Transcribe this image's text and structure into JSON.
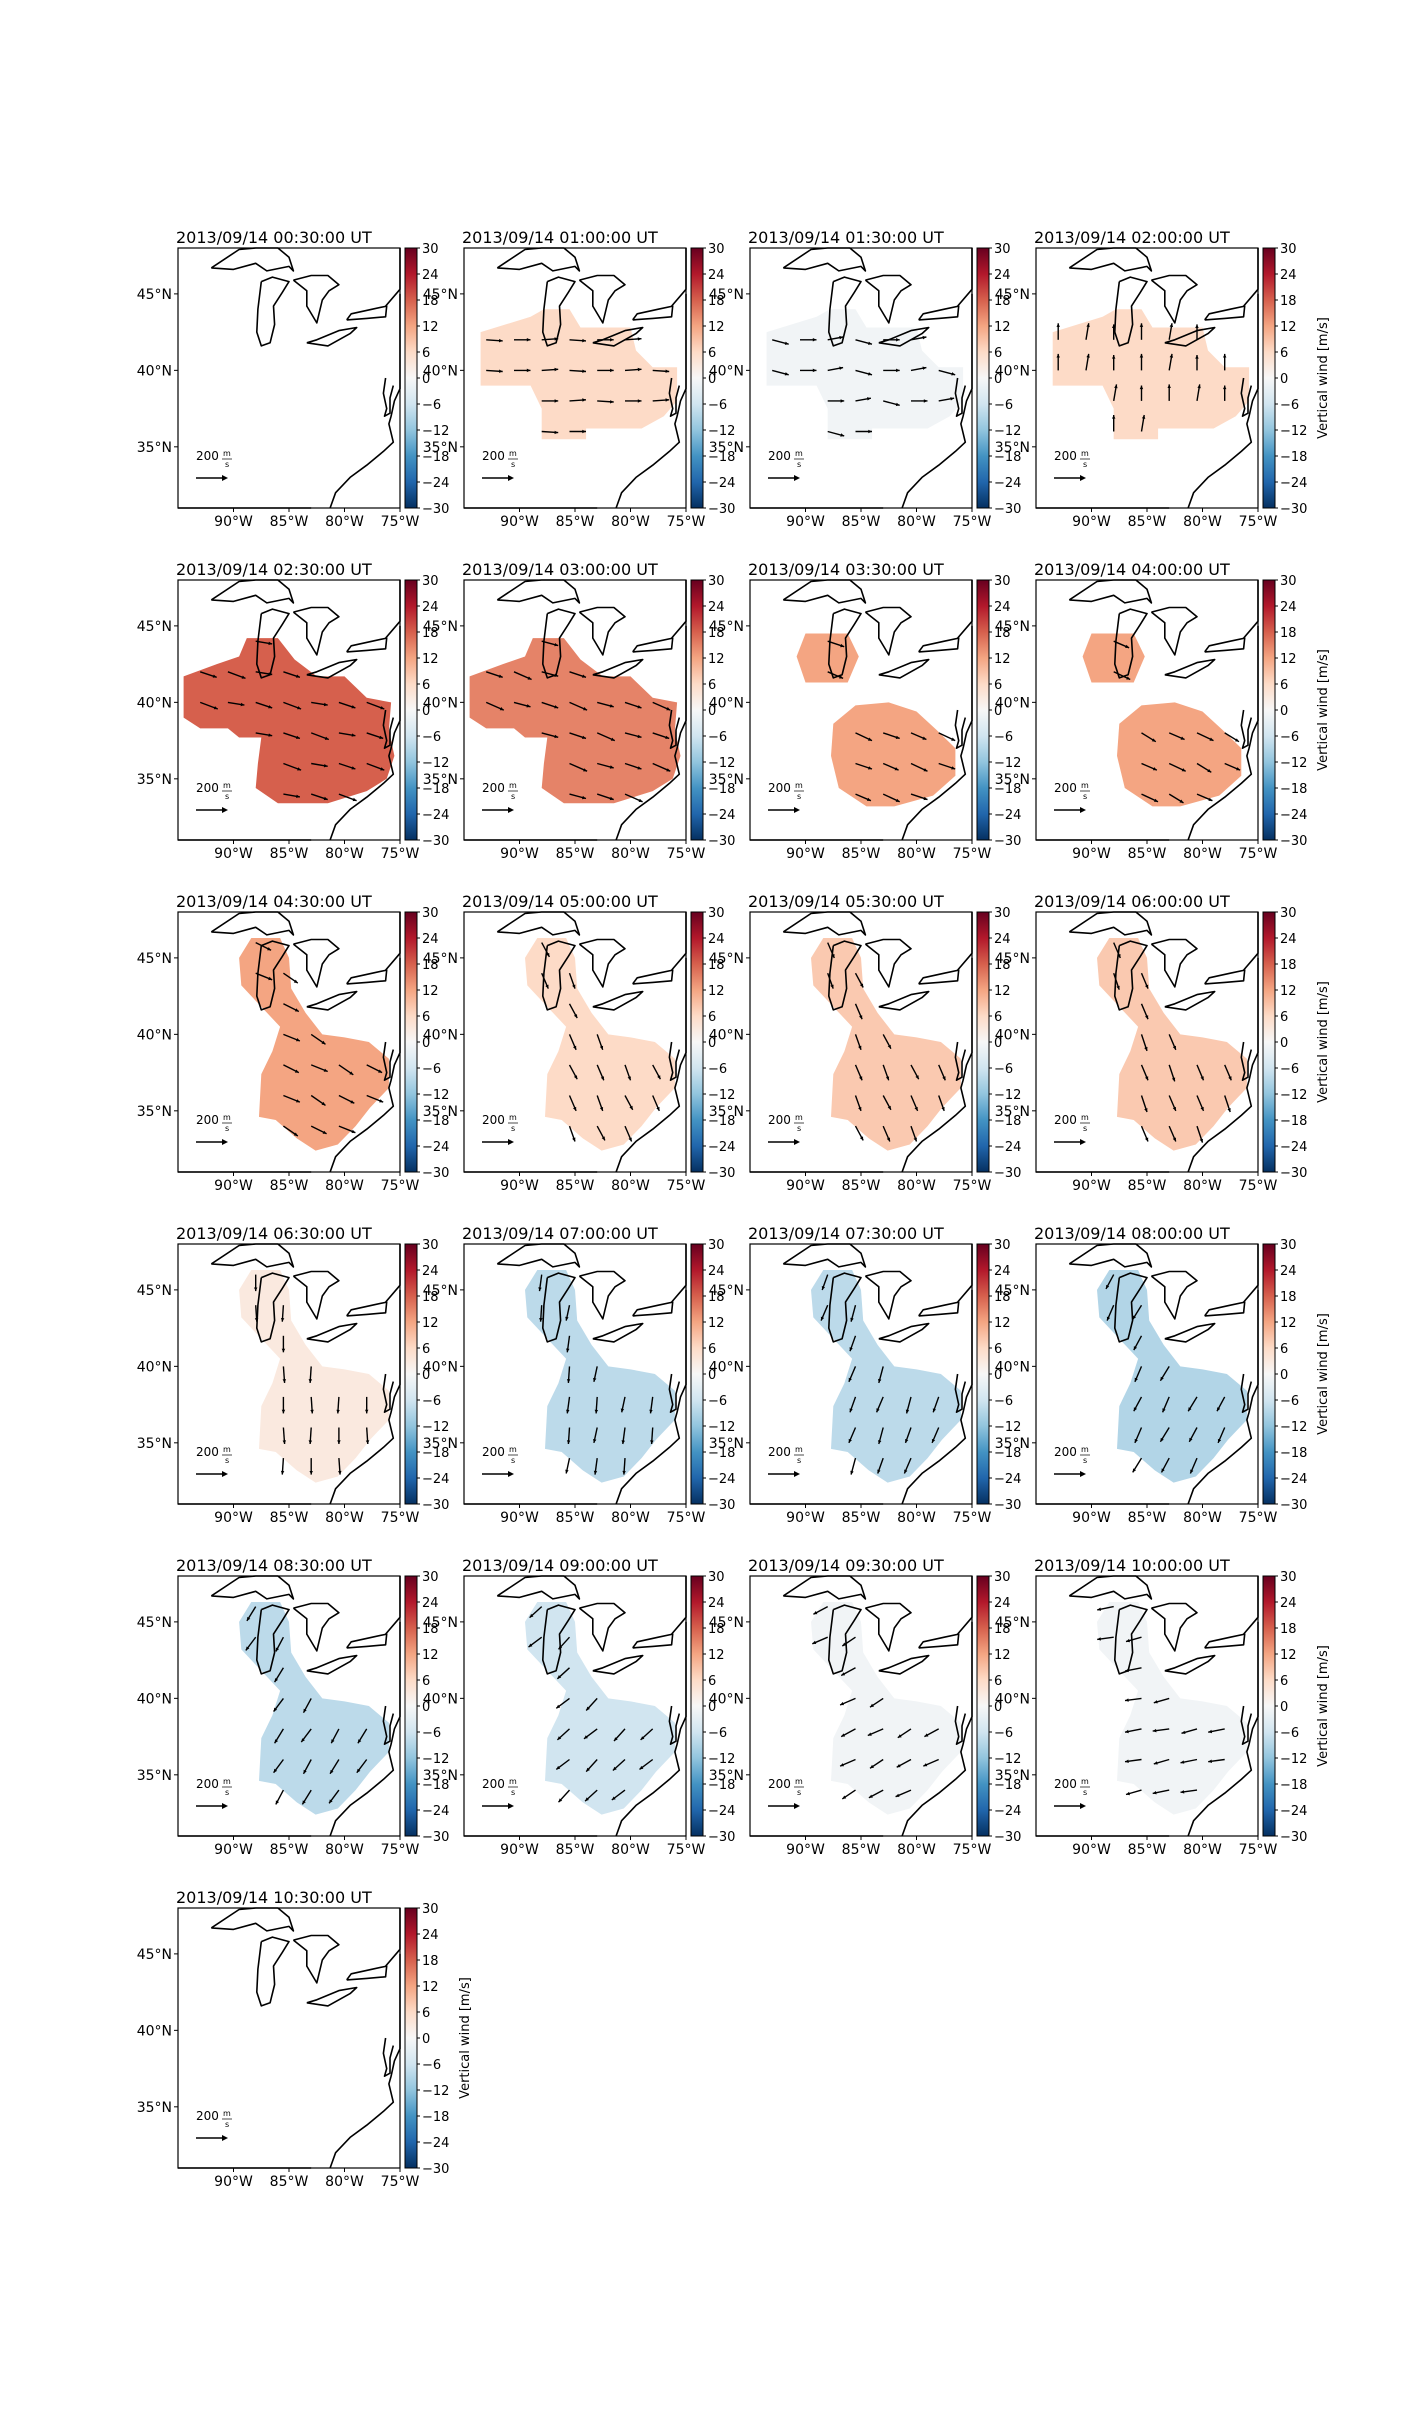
{
  "figure": {
    "colorbar_label": "Vertical wind [m/s]",
    "colorbar_ticks": [
      "30",
      "24",
      "18",
      "12",
      "6",
      "0",
      "−6",
      "−12",
      "−18",
      "−24",
      "−30"
    ],
    "lat_ticks": [
      "45°N",
      "40°N",
      "35°N"
    ],
    "lon_ticks": [
      "90°W",
      "85°W",
      "80°W",
      "75°W"
    ],
    "arrow_key_label": "200",
    "arrow_key_unit_top": "m",
    "arrow_key_unit_bottom": "s",
    "colormap": [
      "#053061",
      "#2166ac",
      "#4393c3",
      "#92c5de",
      "#d1e5f0",
      "#f7f7f7",
      "#fddbc7",
      "#f4a582",
      "#d6604d",
      "#b2182b",
      "#67001f"
    ]
  },
  "chart_data": [
    {
      "type": "heatmap",
      "title": "2013/09/14 00:30:00 UT",
      "value": null,
      "region": "none",
      "arrows": [],
      "colorbar_label_shown": false
    },
    {
      "type": "heatmap",
      "title": "2013/09/14 01:00:00 UT",
      "value": 6,
      "region": "west_lakes",
      "arrows": [
        [
          30,
          -2
        ],
        [
          30,
          0
        ],
        [
          30,
          2
        ]
      ],
      "colorbar_label_shown": false
    },
    {
      "type": "heatmap",
      "title": "2013/09/14 01:30:00 UT",
      "value": -1,
      "region": "west_lakes",
      "arrows": [
        [
          30,
          -8
        ],
        [
          30,
          0
        ],
        [
          28,
          5
        ]
      ],
      "colorbar_label_shown": false
    },
    {
      "type": "heatmap",
      "title": "2013/09/14 02:00:00 UT",
      "value": 6,
      "region": "west_lakes",
      "arrows": [
        [
          0,
          30
        ],
        [
          5,
          30
        ],
        [
          0,
          28
        ]
      ],
      "colorbar_label_shown": true
    },
    {
      "type": "heatmap",
      "title": "2013/09/14 02:30:00 UT",
      "value": 18,
      "region": "west_big",
      "arrows": [
        [
          30,
          -5
        ],
        [
          30,
          -10
        ],
        [
          32,
          -12
        ]
      ],
      "colorbar_label_shown": false
    },
    {
      "type": "heatmap",
      "title": "2013/09/14 03:00:00 UT",
      "value": 15,
      "region": "west_big",
      "arrows": [
        [
          30,
          -8
        ],
        [
          30,
          -10
        ],
        [
          32,
          -14
        ]
      ],
      "colorbar_label_shown": false
    },
    {
      "type": "heatmap",
      "title": "2013/09/14 03:30:00 UT",
      "value": 12,
      "region": "two_blobs",
      "arrows": [
        [
          30,
          -10
        ],
        [
          28,
          -12
        ],
        [
          30,
          -14
        ]
      ],
      "colorbar_label_shown": false
    },
    {
      "type": "heatmap",
      "title": "2013/09/14 04:00:00 UT",
      "value": 12,
      "region": "two_blobs",
      "arrows": [
        [
          28,
          -12
        ],
        [
          30,
          -14
        ],
        [
          26,
          -16
        ]
      ],
      "colorbar_label_shown": true
    },
    {
      "type": "heatmap",
      "title": "2013/09/14 04:30:00 UT",
      "value": 12,
      "region": "chain",
      "arrows": [
        [
          28,
          -14
        ],
        [
          30,
          -12
        ],
        [
          26,
          -18
        ]
      ],
      "colorbar_label_shown": false
    },
    {
      "type": "heatmap",
      "title": "2013/09/14 05:00:00 UT",
      "value": 6,
      "region": "chain",
      "arrows": [
        [
          14,
          -26
        ],
        [
          12,
          -28
        ],
        [
          10,
          -28
        ]
      ],
      "colorbar_label_shown": false
    },
    {
      "type": "heatmap",
      "title": "2013/09/14 05:30:00 UT",
      "value": 8,
      "region": "chain",
      "arrows": [
        [
          12,
          -28
        ],
        [
          10,
          -28
        ],
        [
          14,
          -26
        ]
      ],
      "colorbar_label_shown": false
    },
    {
      "type": "heatmap",
      "title": "2013/09/14 06:00:00 UT",
      "value": 8,
      "region": "chain",
      "arrows": [
        [
          12,
          -28
        ],
        [
          10,
          -30
        ],
        [
          12,
          -28
        ]
      ],
      "colorbar_label_shown": true
    },
    {
      "type": "heatmap",
      "title": "2013/09/14 06:30:00 UT",
      "value": 3,
      "region": "chain",
      "arrows": [
        [
          0,
          -30
        ],
        [
          2,
          -30
        ],
        [
          -2,
          -30
        ]
      ],
      "colorbar_label_shown": false
    },
    {
      "type": "heatmap",
      "title": "2013/09/14 07:00:00 UT",
      "value": -8,
      "region": "chain",
      "arrows": [
        [
          -4,
          -30
        ],
        [
          -2,
          -30
        ],
        [
          -6,
          -28
        ]
      ],
      "colorbar_label_shown": false
    },
    {
      "type": "heatmap",
      "title": "2013/09/14 07:30:00 UT",
      "value": -8,
      "region": "chain",
      "arrows": [
        [
          -10,
          -28
        ],
        [
          -12,
          -28
        ],
        [
          -8,
          -30
        ]
      ],
      "colorbar_label_shown": false
    },
    {
      "type": "heatmap",
      "title": "2013/09/14 08:00:00 UT",
      "value": -9,
      "region": "chain",
      "arrows": [
        [
          -14,
          -26
        ],
        [
          -12,
          -28
        ],
        [
          -16,
          -26
        ]
      ],
      "colorbar_label_shown": true
    },
    {
      "type": "heatmap",
      "title": "2013/09/14 08:30:00 UT",
      "value": -8,
      "region": "chain",
      "arrows": [
        [
          -16,
          -26
        ],
        [
          -18,
          -24
        ],
        [
          -14,
          -26
        ]
      ],
      "colorbar_label_shown": false
    },
    {
      "type": "heatmap",
      "title": "2013/09/14 09:00:00 UT",
      "value": -6,
      "region": "chain",
      "arrows": [
        [
          -22,
          -20
        ],
        [
          -24,
          -18
        ],
        [
          -20,
          -22
        ]
      ],
      "colorbar_label_shown": false
    },
    {
      "type": "heatmap",
      "title": "2013/09/14 09:30:00 UT",
      "value": -1,
      "region": "chain",
      "arrows": [
        [
          -26,
          -14
        ],
        [
          -28,
          -12
        ],
        [
          -24,
          -16
        ]
      ],
      "colorbar_label_shown": false
    },
    {
      "type": "heatmap",
      "title": "2013/09/14 10:00:00 UT",
      "value": -1,
      "region": "chain",
      "arrows": [
        [
          -30,
          -6
        ],
        [
          -30,
          -4
        ],
        [
          -28,
          -8
        ]
      ],
      "colorbar_label_shown": true
    },
    {
      "type": "heatmap",
      "title": "2013/09/14 10:30:00 UT",
      "value": null,
      "region": "none",
      "arrows": [],
      "colorbar_label_shown": true
    }
  ]
}
